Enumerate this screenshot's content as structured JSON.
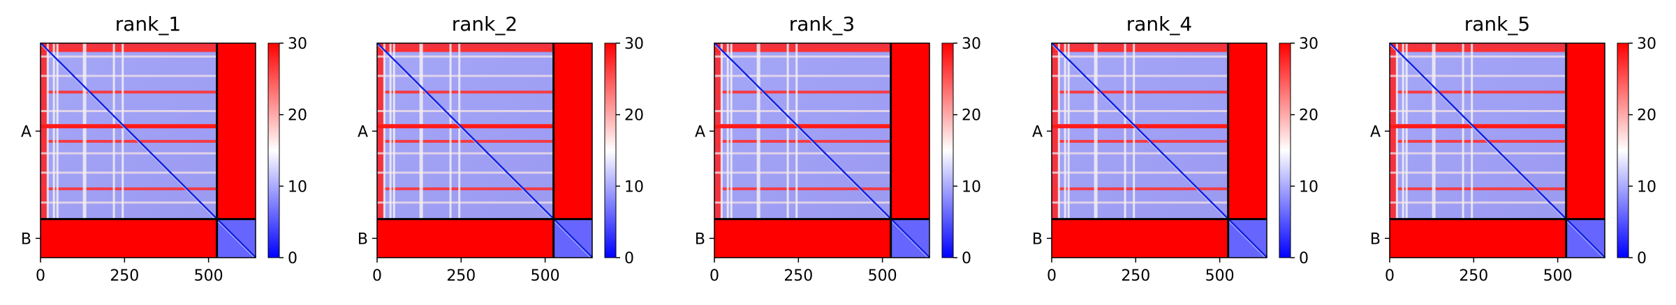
{
  "chart_data": [
    {
      "type": "heatmap",
      "title": "rank_1",
      "x_ticks": [
        0,
        250,
        500
      ],
      "chain_labels": [
        "A",
        "B"
      ],
      "chain_boundary": 525,
      "residue_count": 640,
      "colorbar": {
        "min": 0,
        "max": 30,
        "ticks": [
          0,
          10,
          20,
          30
        ],
        "colormap": [
          "#0000ff",
          "#ffffff",
          "#ff0000"
        ]
      },
      "mean_values": [
        [
          16,
          30
        ],
        [
          30,
          6
        ]
      ],
      "stripe_rows": [
        0.03,
        0.07,
        0.18,
        0.27,
        0.38,
        0.46,
        0.55,
        0.62,
        0.73,
        0.82,
        0.9
      ],
      "stripe_cols": [
        0.035,
        0.07,
        0.09,
        0.24,
        0.41,
        0.46
      ]
    },
    {
      "type": "heatmap",
      "title": "rank_2",
      "x_ticks": [
        0,
        250,
        500
      ],
      "chain_labels": [
        "A",
        "B"
      ],
      "chain_boundary": 525,
      "residue_count": 640,
      "colorbar": {
        "min": 0,
        "max": 30,
        "ticks": [
          0,
          10,
          20,
          30
        ],
        "colormap": [
          "#0000ff",
          "#ffffff",
          "#ff0000"
        ]
      },
      "mean_values": [
        [
          16,
          30
        ],
        [
          30,
          6
        ]
      ],
      "stripe_rows": [
        0.03,
        0.07,
        0.18,
        0.27,
        0.38,
        0.46,
        0.55,
        0.62,
        0.73,
        0.82,
        0.9
      ],
      "stripe_cols": [
        0.035,
        0.07,
        0.09,
        0.24,
        0.41,
        0.46
      ]
    },
    {
      "type": "heatmap",
      "title": "rank_3",
      "x_ticks": [
        0,
        250,
        500
      ],
      "chain_labels": [
        "A",
        "B"
      ],
      "chain_boundary": 525,
      "residue_count": 640,
      "colorbar": {
        "min": 0,
        "max": 30,
        "ticks": [
          0,
          10,
          20,
          30
        ],
        "colormap": [
          "#0000ff",
          "#ffffff",
          "#ff0000"
        ]
      },
      "mean_values": [
        [
          16,
          30
        ],
        [
          30,
          6
        ]
      ],
      "stripe_rows": [
        0.03,
        0.07,
        0.18,
        0.27,
        0.38,
        0.46,
        0.55,
        0.62,
        0.73,
        0.82,
        0.9
      ],
      "stripe_cols": [
        0.035,
        0.07,
        0.09,
        0.24,
        0.41,
        0.46
      ]
    },
    {
      "type": "heatmap",
      "title": "rank_4",
      "x_ticks": [
        0,
        250,
        500
      ],
      "chain_labels": [
        "A",
        "B"
      ],
      "chain_boundary": 525,
      "residue_count": 640,
      "colorbar": {
        "min": 0,
        "max": 30,
        "ticks": [
          0,
          10,
          20,
          30
        ],
        "colormap": [
          "#0000ff",
          "#ffffff",
          "#ff0000"
        ]
      },
      "mean_values": [
        [
          16,
          30
        ],
        [
          30,
          6
        ]
      ],
      "stripe_rows": [
        0.03,
        0.07,
        0.18,
        0.27,
        0.38,
        0.46,
        0.55,
        0.62,
        0.73,
        0.82,
        0.9
      ],
      "stripe_cols": [
        0.035,
        0.07,
        0.09,
        0.24,
        0.41,
        0.46
      ]
    },
    {
      "type": "heatmap",
      "title": "rank_5",
      "x_ticks": [
        0,
        250,
        500
      ],
      "chain_labels": [
        "A",
        "B"
      ],
      "chain_boundary": 525,
      "residue_count": 640,
      "colorbar": {
        "min": 0,
        "max": 30,
        "ticks": [
          0,
          10,
          20,
          30
        ],
        "colormap": [
          "#0000ff",
          "#ffffff",
          "#ff0000"
        ]
      },
      "mean_values": [
        [
          16,
          30
        ],
        [
          30,
          6
        ]
      ],
      "stripe_rows": [
        0.03,
        0.07,
        0.18,
        0.27,
        0.38,
        0.46,
        0.55,
        0.62,
        0.73,
        0.82,
        0.9
      ],
      "stripe_cols": [
        0.035,
        0.07,
        0.09,
        0.24,
        0.41,
        0.46
      ]
    }
  ]
}
